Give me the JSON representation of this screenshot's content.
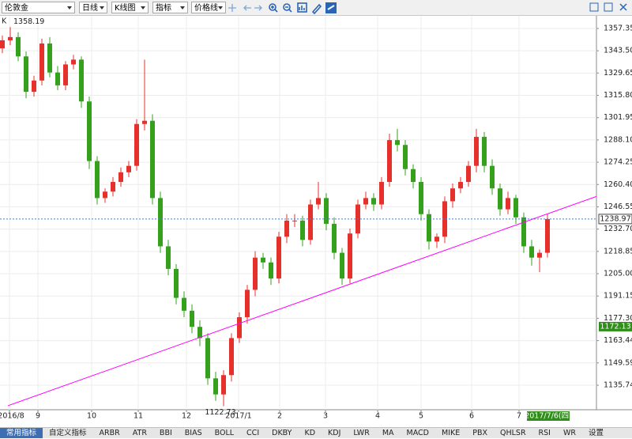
{
  "toolbar": {
    "symbol": "伦敦金",
    "period": "日线",
    "chart_type": "K线图",
    "indicator": "指标",
    "price_line": "价格线"
  },
  "chart_data": {
    "type": "candlestick",
    "label": "K",
    "open": [
      1345,
      1350,
      1352,
      1340,
      1318,
      1325,
      1348,
      1330,
      1322,
      1335,
      1338,
      1312,
      1275,
      1252,
      1256,
      1262,
      1268,
      1272,
      1298,
      1300,
      1252,
      1222,
      1208,
      1190,
      1182,
      1172,
      1165,
      1140,
      1130,
      1142,
      1165,
      1178,
      1195,
      1215,
      1212,
      1202,
      1228,
      1238,
      1238,
      1226,
      1248,
      1252,
      1236,
      1218,
      1202,
      1230,
      1248,
      1252,
      1248,
      1262,
      1288,
      1285,
      1270,
      1262,
      1242,
      1225,
      1228,
      1250,
      1258,
      1262,
      1272,
      1290,
      1272,
      1258,
      1245,
      1252,
      1240,
      1222,
      1215,
      1218
    ],
    "high": [
      1353,
      1358.19,
      1355,
      1343,
      1328,
      1351,
      1352,
      1334,
      1337,
      1341,
      1340,
      1315,
      1278,
      1258,
      1265,
      1271,
      1275,
      1301,
      1338,
      1304,
      1256,
      1226,
      1211,
      1194,
      1186,
      1176,
      1168,
      1144,
      1145,
      1168,
      1181,
      1198,
      1219,
      1218,
      1215,
      1231,
      1242,
      1242,
      1241,
      1251,
      1262,
      1255,
      1240,
      1221,
      1233,
      1251,
      1256,
      1255,
      1265,
      1292,
      1295,
      1288,
      1273,
      1265,
      1245,
      1230,
      1253,
      1261,
      1265,
      1275,
      1295,
      1293,
      1276,
      1261,
      1256,
      1254,
      1243,
      1226,
      1220,
      1242
    ],
    "low": [
      1342,
      1347,
      1337,
      1314,
      1315,
      1322,
      1327,
      1319,
      1319,
      1332,
      1308,
      1270,
      1248,
      1249,
      1253,
      1259,
      1265,
      1269,
      1294,
      1248,
      1218,
      1204,
      1186,
      1178,
      1168,
      1160,
      1136,
      1126,
      1122.73,
      1138,
      1162,
      1174,
      1191,
      1208,
      1198,
      1199,
      1224,
      1234,
      1222,
      1223,
      1245,
      1232,
      1214,
      1198,
      1199,
      1227,
      1245,
      1244,
      1245,
      1259,
      1281,
      1266,
      1258,
      1238,
      1220,
      1221,
      1224,
      1246,
      1255,
      1259,
      1268,
      1268,
      1254,
      1241,
      1242,
      1236,
      1218,
      1210,
      1206,
      1215
    ],
    "close": [
      1350,
      1352,
      1340,
      1318,
      1325,
      1348,
      1330,
      1322,
      1335,
      1338,
      1312,
      1275,
      1252,
      1256,
      1262,
      1268,
      1272,
      1298,
      1300,
      1252,
      1222,
      1208,
      1190,
      1182,
      1172,
      1165,
      1140,
      1130,
      1142,
      1165,
      1178,
      1195,
      1215,
      1212,
      1202,
      1228,
      1238,
      1238,
      1226,
      1248,
      1252,
      1236,
      1218,
      1202,
      1230,
      1248,
      1252,
      1248,
      1262,
      1288,
      1285,
      1270,
      1262,
      1242,
      1225,
      1228,
      1250,
      1258,
      1262,
      1272,
      1290,
      1272,
      1258,
      1245,
      1252,
      1240,
      1222,
      1215,
      1218,
      1238.97
    ],
    "up_color": "#e5302b",
    "down_color": "#34a01c",
    "xlim": [
      -0.3,
      75.2
    ],
    "xticks": [
      {
        "value": 0.9,
        "label": "2016/8"
      },
      {
        "value": 4.5,
        "label": "9"
      },
      {
        "value": 11.3,
        "label": "10"
      },
      {
        "value": 17.2,
        "label": "11"
      },
      {
        "value": 23.3,
        "label": "12"
      },
      {
        "value": 29.9,
        "label": "2017/1"
      },
      {
        "value": 35.1,
        "label": "2"
      },
      {
        "value": 40.9,
        "label": "3"
      },
      {
        "value": 47.5,
        "label": "4"
      },
      {
        "value": 53,
        "label": "5"
      },
      {
        "value": 59.4,
        "label": "6"
      },
      {
        "value": 65.4,
        "label": "7"
      }
    ],
    "ylim": [
      1120.5,
      1365.2
    ],
    "yticks": [
      1357.35,
      {
        "value": 1343.5,
        "label": "1343.50"
      },
      1329.65,
      {
        "value": 1315.8,
        "label": "1315.80"
      },
      1301.95,
      {
        "value": 1288.1,
        "label": "1288.10"
      },
      1274.25,
      {
        "value": 1260.4,
        "label": "1260.40"
      },
      1246.55,
      {
        "value": 1232.7,
        "label": "1232.70"
      },
      1218.85,
      {
        "value": 1205,
        "label": "1205.00"
      },
      1191.15,
      {
        "value": 1177.3,
        "label": "1177.30"
      },
      1163.44,
      1149.59,
      1135.74
    ],
    "grid": true,
    "high_label": 1358.19,
    "low_label": 1122.73,
    "last_price": 1238.97,
    "last_date": "2017/7/6(四)",
    "marker_price": 1172.13,
    "trendline": {
      "color": "#ff00ff",
      "x": [
        0.7,
        75.2
      ],
      "values": [
        1123,
        1253
      ]
    }
  },
  "tabs": [
    "常用指标",
    "自定义指标",
    "ARBR",
    "ATR",
    "BBI",
    "BIAS",
    "BOLL",
    "CCI",
    "DKBY",
    "KD",
    "KDJ",
    "LWR",
    "MA",
    "MACD",
    "MIKE",
    "PBX",
    "QHLSR",
    "RSI",
    "WR",
    "设置"
  ]
}
